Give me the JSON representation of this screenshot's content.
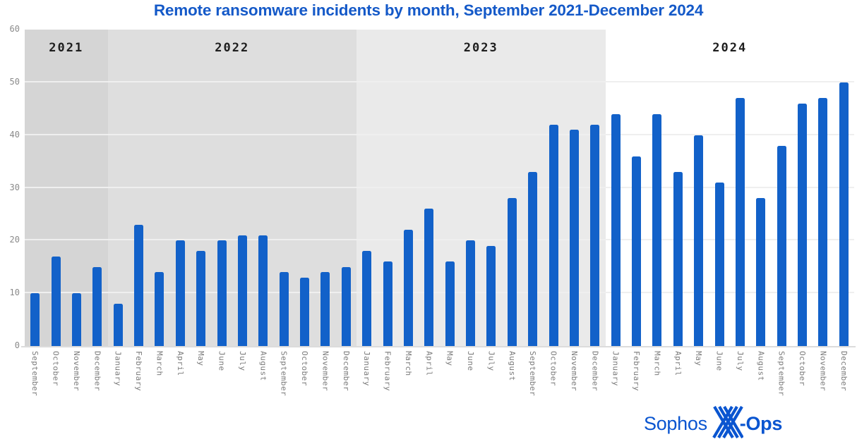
{
  "title": "Remote ransomware incidents by month, September 2021-December 2024",
  "colors": {
    "title": "#1459c8",
    "bar": "#1261c9",
    "gridline": "#efefef",
    "baseline": "#dcdcdc",
    "year_label": "#1e1e1e",
    "axis_label": "#7b7b7b",
    "logo": "#0a55d0"
  },
  "logo": {
    "left": "Sophos",
    "right": "-Ops"
  },
  "chart_data": {
    "type": "bar",
    "title": "Remote ransomware incidents by month, September 2021-December 2024",
    "xlabel": "",
    "ylabel": "",
    "ylim": [
      0,
      60
    ],
    "y_ticks": [
      0,
      10,
      20,
      30,
      40,
      50,
      60
    ],
    "grid": true,
    "bar_color": "#1261c9",
    "x_label_orientation": "vertical",
    "groups": [
      {
        "year": "2021",
        "band_color": "#d5d5d5",
        "categories": [
          "September",
          "October",
          "November",
          "December"
        ],
        "values": [
          10,
          17,
          10,
          15
        ]
      },
      {
        "year": "2022",
        "band_color": "#dedede",
        "categories": [
          "January",
          "February",
          "March",
          "April",
          "May",
          "June",
          "July",
          "August",
          "September",
          "October",
          "November",
          "December"
        ],
        "values": [
          8,
          23,
          14,
          20,
          18,
          20,
          21,
          21,
          14,
          13,
          14,
          15
        ]
      },
      {
        "year": "2023",
        "band_color": "#eaeaea",
        "categories": [
          "January",
          "February",
          "March",
          "April",
          "May",
          "June",
          "July",
          "August",
          "September",
          "October",
          "November",
          "December"
        ],
        "values": [
          18,
          16,
          22,
          26,
          16,
          20,
          19,
          28,
          33,
          42,
          41,
          42
        ]
      },
      {
        "year": "2024",
        "band_color": "#ffffff",
        "categories": [
          "January",
          "February",
          "March",
          "April",
          "May",
          "June",
          "July",
          "August",
          "September",
          "October",
          "November",
          "December"
        ],
        "values": [
          44,
          36,
          44,
          33,
          40,
          31,
          47,
          28,
          38,
          46,
          47,
          50
        ]
      }
    ]
  }
}
